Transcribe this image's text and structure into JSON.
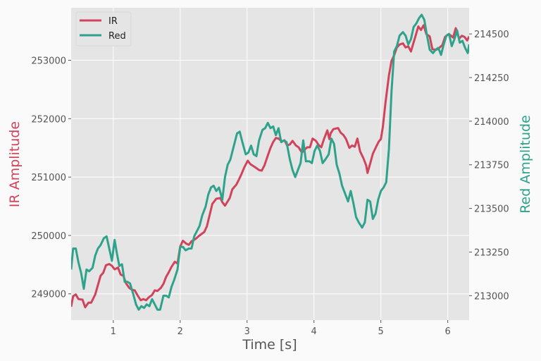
{
  "chart_data": {
    "type": "line",
    "title": "",
    "xlabel": "Time [s]",
    "ylabel": "IR Amplitude",
    "ylabel_right": "Red Amplitude",
    "xlim": [
      0.37,
      6.32
    ],
    "ylim": [
      248550,
      253900
    ],
    "ylim_right": [
      212860,
      214650
    ],
    "grid": true,
    "legend_position": "upper left",
    "x_ticks": [
      "1",
      "2",
      "3",
      "4",
      "5",
      "6"
    ],
    "y_ticks": [
      "249000",
      "250000",
      "251000",
      "252000",
      "253000"
    ],
    "y_ticks_right": [
      "213000",
      "213250",
      "213500",
      "213750",
      "214000",
      "214250",
      "214500"
    ],
    "colors": {
      "IR": "#d1435b",
      "Red": "#2ea28a",
      "axes_bg": "#e5e5e5",
      "figure_bg": "#fafafa",
      "grid": "#ffffff",
      "tick_text": "#555555"
    },
    "series": [
      {
        "name": "IR",
        "axis": "left",
        "x": [
          0.37,
          0.4,
          0.44,
          0.48,
          0.54,
          0.58,
          0.63,
          0.67,
          0.73,
          0.77,
          0.81,
          0.85,
          0.89,
          0.94,
          0.98,
          1.02,
          1.07,
          1.11,
          1.15,
          1.19,
          1.24,
          1.28,
          1.32,
          1.37,
          1.41,
          1.45,
          1.49,
          1.53,
          1.58,
          1.62,
          1.66,
          1.71,
          1.75,
          1.79,
          1.83,
          1.87,
          1.92,
          1.96,
          2.0,
          2.04,
          2.09,
          2.13,
          2.17,
          2.23,
          2.29,
          2.36,
          2.4,
          2.44,
          2.48,
          2.54,
          2.6,
          2.63,
          2.67,
          2.74,
          2.78,
          2.84,
          2.88,
          2.92,
          2.96,
          3.01,
          3.05,
          3.12,
          3.18,
          3.22,
          3.26,
          3.31,
          3.35,
          3.39,
          3.43,
          3.47,
          3.52,
          3.56,
          3.6,
          3.64,
          3.68,
          3.73,
          3.77,
          3.82,
          3.85,
          3.9,
          3.94,
          3.98,
          4.03,
          4.07,
          4.11,
          4.15,
          4.2,
          4.23,
          4.25,
          4.29,
          4.36,
          4.4,
          4.44,
          4.48,
          4.53,
          4.57,
          4.61,
          4.65,
          4.69,
          4.74,
          4.78,
          4.8,
          4.84,
          4.88,
          4.93,
          4.97,
          5.0,
          5.03,
          5.07,
          5.12,
          5.16,
          5.2,
          5.24,
          5.28,
          5.33,
          5.37,
          5.41,
          5.45,
          5.49,
          5.52,
          5.56,
          5.6,
          5.64,
          5.68,
          5.73,
          5.77,
          5.83,
          5.87,
          5.92,
          5.96,
          6.0,
          6.04,
          6.08,
          6.12,
          6.17,
          6.21,
          6.25,
          6.29,
          6.32
        ],
        "values": [
          248780,
          248960,
          248990,
          248910,
          248900,
          248770,
          248850,
          248850,
          248990,
          249150,
          249310,
          249360,
          249490,
          249510,
          249480,
          249420,
          249450,
          249330,
          249310,
          249180,
          249100,
          249070,
          249060,
          248960,
          248890,
          248910,
          248890,
          248940,
          248980,
          249060,
          249050,
          249100,
          249170,
          249290,
          249370,
          249460,
          249550,
          249520,
          249810,
          249910,
          249860,
          249840,
          249900,
          249940,
          250000,
          250060,
          250160,
          250350,
          250540,
          250630,
          250640,
          250570,
          250510,
          250640,
          250790,
          250870,
          250960,
          251060,
          251170,
          251280,
          251220,
          251170,
          251120,
          251110,
          251200,
          251370,
          251500,
          251600,
          251670,
          251660,
          251610,
          251630,
          251540,
          251560,
          251620,
          251540,
          251510,
          251420,
          251460,
          251510,
          251510,
          251660,
          251620,
          251550,
          251510,
          251650,
          251800,
          251650,
          251750,
          251820,
          251840,
          251760,
          251720,
          251650,
          251500,
          251540,
          251520,
          251660,
          251440,
          251320,
          251200,
          251070,
          251230,
          251400,
          251520,
          251610,
          251650,
          251860,
          252280,
          252740,
          252990,
          253090,
          253220,
          253270,
          253290,
          253220,
          253240,
          253150,
          253310,
          253420,
          253580,
          253520,
          253600,
          253450,
          253410,
          253190,
          253180,
          253210,
          253260,
          253400,
          253440,
          253430,
          253390,
          253550,
          253370,
          253420,
          253400,
          253340,
          253410
        ]
      },
      {
        "name": "Red",
        "axis": "right",
        "x": [
          0.37,
          0.4,
          0.44,
          0.48,
          0.52,
          0.56,
          0.6,
          0.64,
          0.69,
          0.73,
          0.77,
          0.81,
          0.86,
          0.9,
          0.94,
          0.98,
          1.02,
          1.05,
          1.09,
          1.13,
          1.17,
          1.21,
          1.25,
          1.29,
          1.34,
          1.38,
          1.42,
          1.46,
          1.5,
          1.54,
          1.58,
          1.62,
          1.66,
          1.7,
          1.75,
          1.79,
          1.83,
          1.87,
          1.91,
          1.96,
          2.0,
          2.04,
          2.08,
          2.13,
          2.17,
          2.21,
          2.25,
          2.29,
          2.33,
          2.38,
          2.42,
          2.46,
          2.5,
          2.54,
          2.58,
          2.63,
          2.67,
          2.71,
          2.75,
          2.81,
          2.85,
          2.89,
          2.93,
          2.98,
          3.02,
          3.06,
          3.1,
          3.14,
          3.18,
          3.23,
          3.27,
          3.31,
          3.35,
          3.39,
          3.43,
          3.47,
          3.51,
          3.55,
          3.59,
          3.64,
          3.68,
          3.72,
          3.76,
          3.8,
          3.84,
          3.88,
          3.93,
          3.97,
          4.01,
          4.05,
          4.09,
          4.13,
          4.17,
          4.22,
          4.26,
          4.3,
          4.34,
          4.38,
          4.42,
          4.46,
          4.51,
          4.55,
          4.59,
          4.63,
          4.67,
          4.72,
          4.76,
          4.8,
          4.84,
          4.88,
          4.92,
          4.96,
          5.0,
          5.04,
          5.08,
          5.12,
          5.16,
          5.2,
          5.24,
          5.28,
          5.33,
          5.37,
          5.41,
          5.45,
          5.49,
          5.53,
          5.57,
          5.61,
          5.65,
          5.69,
          5.73,
          5.78,
          5.82,
          5.86,
          5.9,
          5.94,
          5.98,
          6.02,
          6.06,
          6.1,
          6.14,
          6.18,
          6.22,
          6.26,
          6.3,
          6.32
        ],
        "values": [
          213150,
          213270,
          213270,
          213190,
          213130,
          213040,
          213150,
          213140,
          213160,
          213230,
          213270,
          213290,
          213330,
          213340,
          213270,
          213200,
          213320,
          213250,
          213170,
          213180,
          213080,
          213080,
          213070,
          213020,
          212950,
          212920,
          212940,
          212930,
          212950,
          212940,
          212980,
          212950,
          212920,
          212920,
          213000,
          213000,
          212990,
          213050,
          213090,
          213150,
          213280,
          213280,
          213260,
          213270,
          213270,
          213340,
          213370,
          213400,
          213460,
          213510,
          213580,
          213620,
          213630,
          213600,
          213620,
          213550,
          213680,
          213750,
          213780,
          213870,
          213930,
          213940,
          213880,
          213810,
          213820,
          213860,
          213810,
          213800,
          213890,
          213950,
          213960,
          213990,
          213960,
          213970,
          213920,
          213960,
          213880,
          213890,
          213880,
          213780,
          213720,
          213680,
          213720,
          213760,
          213890,
          213770,
          213770,
          213760,
          213830,
          213860,
          213830,
          213760,
          213780,
          213810,
          213900,
          213870,
          213750,
          213700,
          213630,
          213590,
          213540,
          213600,
          213530,
          213450,
          213420,
          213390,
          213420,
          213550,
          213540,
          213440,
          213470,
          213550,
          213600,
          213620,
          213650,
          213840,
          214170,
          214400,
          214430,
          214490,
          214510,
          214490,
          214440,
          214470,
          214540,
          214560,
          214590,
          214610,
          214580,
          214490,
          214410,
          214390,
          214410,
          214420,
          214380,
          214440,
          214490,
          214500,
          214430,
          214470,
          214520,
          214450,
          214460,
          214420,
          214390,
          214440
        ]
      }
    ]
  },
  "legend": {
    "items": [
      {
        "label": "IR",
        "color": "#d1435b"
      },
      {
        "label": "Red",
        "color": "#2ea28a"
      }
    ]
  },
  "axes": {
    "xlabel": "Time [s]",
    "ylabel_left": "IR Amplitude",
    "ylabel_right": "Red Amplitude"
  }
}
